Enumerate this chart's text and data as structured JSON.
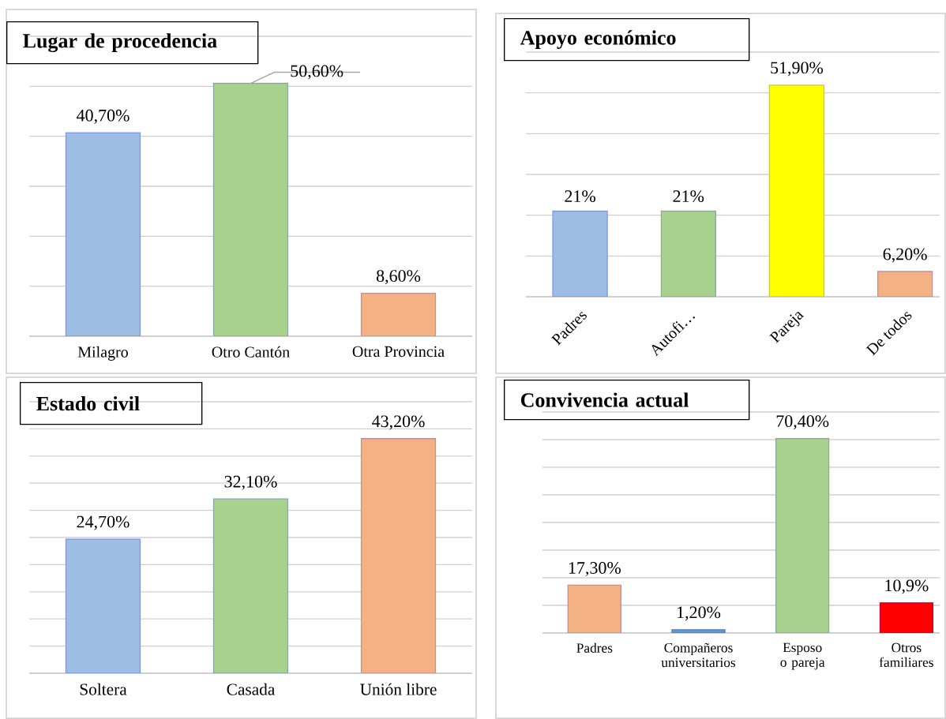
{
  "chart_data": [
    {
      "type": "bar",
      "title": "Lugar de procedencia",
      "categories": [
        "Milagro",
        "Otro Cantón",
        "Otra Provincia"
      ],
      "values": [
        40.7,
        50.6,
        8.6
      ],
      "value_labels": [
        "40,70%",
        "50,60%",
        "8,60%"
      ],
      "colors": [
        "#9dbde5",
        "#a9d18e",
        "#f4b183"
      ],
      "ylim": [
        0,
        60
      ],
      "yticks": [
        {
          "value": 0,
          "label": null
        },
        {
          "value": 10,
          "label": null
        },
        {
          "value": 20,
          "label": null
        },
        {
          "value": 30,
          "label": null
        },
        {
          "value": 40,
          "label": null
        },
        {
          "value": 50,
          "label": null
        },
        {
          "value": 60,
          "label": null
        }
      ],
      "grid": "y",
      "tick_labels": "x"
    },
    {
      "type": "bar",
      "title": "Apoyo económico",
      "categories": [
        "Padres",
        "Autofi…",
        "Pareja",
        "De todos"
      ],
      "values": [
        21,
        21,
        51.9,
        6.2
      ],
      "value_labels": [
        "21%",
        "21%",
        "51,90%",
        "6,20%"
      ],
      "colors": [
        "#9dbde5",
        "#a9d18e",
        "#ffff00",
        "#f4b183"
      ],
      "ylim": [
        0,
        60
      ],
      "yticks": [
        {
          "value": 0,
          "label": null
        },
        {
          "value": 10,
          "label": null
        },
        {
          "value": 20,
          "label": null
        },
        {
          "value": 30,
          "label": null
        },
        {
          "value": 40,
          "label": null
        },
        {
          "value": 50,
          "label": null
        },
        {
          "value": 60,
          "label": null
        }
      ],
      "grid": "y",
      "tick_labels": "x"
    },
    {
      "type": "bar",
      "title": "Estado civil",
      "categories": [
        "Soltera",
        "Casada",
        "Unión libre"
      ],
      "values": [
        24.7,
        32.1,
        43.2
      ],
      "value_labels": [
        "24,70%",
        "32,10%",
        "43,20%"
      ],
      "colors": [
        "#9dbde5",
        "#a9d18e",
        "#f4b183"
      ],
      "ylim": [
        0,
        50
      ],
      "yticks": [
        {
          "value": 0,
          "label": null
        },
        {
          "value": 5,
          "label": null
        },
        {
          "value": 10,
          "label": null
        },
        {
          "value": 15,
          "label": null
        },
        {
          "value": 20,
          "label": null
        },
        {
          "value": 25,
          "label": null
        },
        {
          "value": 30,
          "label": null
        },
        {
          "value": 35,
          "label": null
        },
        {
          "value": 40,
          "label": null
        },
        {
          "value": 45,
          "label": null
        },
        {
          "value": 50,
          "label": null
        }
      ],
      "grid": "y",
      "tick_labels": "x"
    },
    {
      "type": "bar",
      "title": "Convivencia  actual",
      "categories": [
        "Padres",
        "Compañeros universitarios",
        "Esposo o pareja",
        "Otros familiares"
      ],
      "values": [
        17.3,
        1.2,
        70.4,
        10.9
      ],
      "value_labels": [
        "17,30%",
        "1,20%",
        "70,40%",
        "10,9%"
      ],
      "colors": [
        "#f4b183",
        "#5b9bd5",
        "#a9d18e",
        "#ff0000"
      ],
      "ylim": [
        0,
        80
      ],
      "yticks": [
        {
          "value": 0,
          "label": null
        },
        {
          "value": 10,
          "label": null
        },
        {
          "value": 20,
          "label": null
        },
        {
          "value": 30,
          "label": null
        },
        {
          "value": 40,
          "label": null
        },
        {
          "value": 50,
          "label": null
        },
        {
          "value": 60,
          "label": null
        },
        {
          "value": 70,
          "label": null
        },
        {
          "value": 80,
          "label": null
        }
      ],
      "grid": "y",
      "tick_labels": "x"
    }
  ]
}
